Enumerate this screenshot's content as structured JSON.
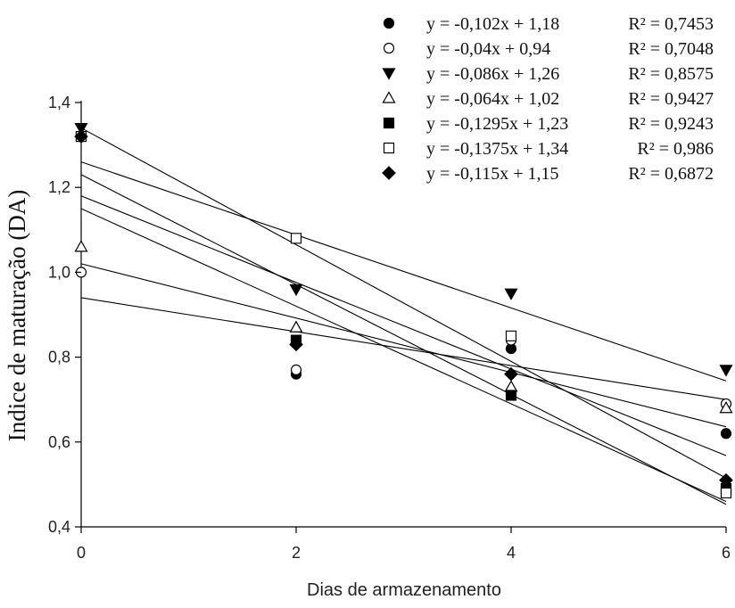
{
  "chart_data": {
    "type": "scatter",
    "xlabel": "Dias de armazenamento",
    "ylabel": "Indice de maturação (DA)",
    "xlim": [
      0,
      6
    ],
    "ylim": [
      0.4,
      1.4
    ],
    "x_ticks": [
      0,
      2,
      4,
      6
    ],
    "x_tick_labels": [
      "0",
      "2",
      "4",
      "6"
    ],
    "y_ticks": [
      0.4,
      0.6,
      0.8,
      1.0,
      1.2,
      1.4
    ],
    "y_tick_labels": [
      "0,4",
      "0,6",
      "0,8",
      "1,0",
      "1,2",
      "1,4"
    ],
    "grid": false,
    "legend_position": "top-right",
    "x": [
      0,
      2,
      4,
      6
    ],
    "series": [
      {
        "marker": "circle-filled",
        "values": [
          1.32,
          0.76,
          0.82,
          0.62
        ],
        "fit": {
          "slope": -0.102,
          "intercept": 1.18
        },
        "equation": "y = -0,102x + 1,18",
        "r2": "R² = 0,7453"
      },
      {
        "marker": "circle-open",
        "values": [
          1.0,
          0.77,
          0.84,
          0.69
        ],
        "fit": {
          "slope": -0.04,
          "intercept": 0.94
        },
        "equation": "y = -0,04x + 0,94",
        "r2": "R² = 0,7048"
      },
      {
        "marker": "triangle-down-filled",
        "values": [
          1.34,
          0.96,
          0.95,
          0.77
        ],
        "fit": {
          "slope": -0.086,
          "intercept": 1.26
        },
        "equation": "y = -0,086x + 1,26",
        "r2": "R² = 0,8575"
      },
      {
        "marker": "triangle-up-open",
        "values": [
          1.06,
          0.87,
          0.73,
          0.68
        ],
        "fit": {
          "slope": -0.064,
          "intercept": 1.02
        },
        "equation": "y = -0,064x + 1,02",
        "r2": "R² = 0,9427"
      },
      {
        "marker": "square-filled",
        "values": [
          1.32,
          0.84,
          0.71,
          0.49
        ],
        "fit": {
          "slope": -0.1295,
          "intercept": 1.23
        },
        "equation": "y = -0,1295x + 1,23",
        "r2": "R² = 0,9243"
      },
      {
        "marker": "square-open",
        "values": [
          1.32,
          1.08,
          0.85,
          0.48
        ],
        "fit": {
          "slope": -0.1375,
          "intercept": 1.34
        },
        "equation": "y = -0,1375x + 1,34",
        "r2": "R² = 0,986"
      },
      {
        "marker": "diamond-filled",
        "values": [
          1.32,
          0.83,
          0.76,
          0.51
        ],
        "fit": {
          "slope": -0.115,
          "intercept": 1.15
        },
        "equation": "y = -0,115x + 1,15",
        "r2": "R² = 0,6872"
      }
    ]
  }
}
